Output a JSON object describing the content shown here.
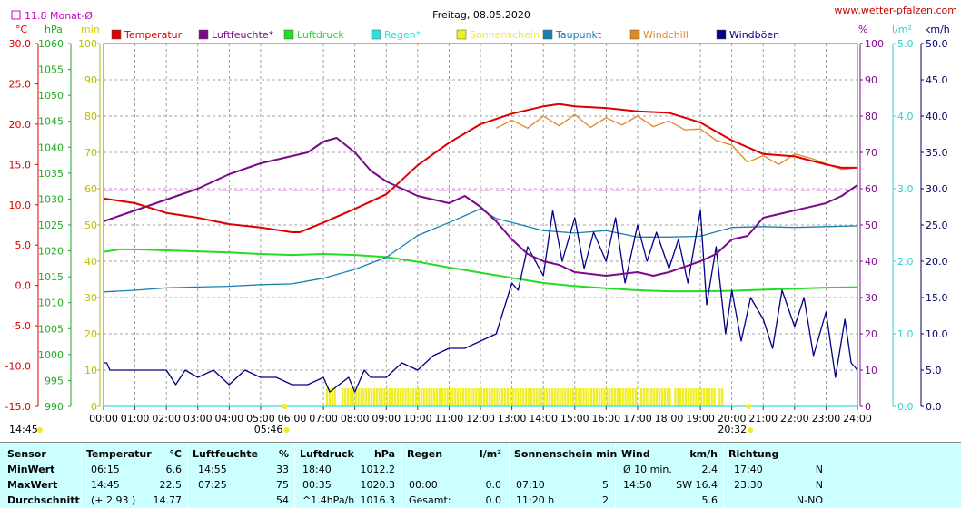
{
  "header": {
    "title": "Freitag, 08.05.2020",
    "website": "www.wetter-pfalzen.com",
    "monthavg_label": "11.8 Monat-Ø",
    "unit_labels": {
      "celsius": "°C",
      "hpa": "hPa",
      "min": "min",
      "percent": "%",
      "lm2": "l/m²",
      "kmh": "km/h"
    }
  },
  "colors": {
    "temperature": "#dd0000",
    "humidity": "#7b0a8a",
    "pressure": "#22dd22",
    "rain": "#33dddd",
    "sunshine": "#eeee22",
    "dewpoint": "#1a7fb0",
    "windchill": "#dd8822",
    "gusts": "#000088",
    "reference": "#cc00cc",
    "stats_bg": "#ccffff"
  },
  "chart_data": {
    "type": "line",
    "x_axis": {
      "ticks": [
        "00:00",
        "01:00",
        "02:00",
        "03:00",
        "04:00",
        "05:00",
        "06:00",
        "07:00",
        "08:00",
        "09:00",
        "10:00",
        "11:00",
        "12:00",
        "13:00",
        "14:00",
        "15:00",
        "16:00",
        "17:00",
        "18:00",
        "19:00",
        "20:00",
        "21:00",
        "22:00",
        "23:00",
        "24:00"
      ],
      "sunrise": "05:46",
      "sunset": "20:32"
    },
    "left_axes": [
      {
        "unit": "°C",
        "range": [
          -15,
          30
        ],
        "ticks": [
          "30.0",
          "25.0",
          "20.0",
          "15.0",
          "10.0",
          "5.0",
          "0.0",
          "-5.0",
          "-10.0",
          "-15.0"
        ]
      },
      {
        "unit": "hPa",
        "range": [
          990,
          1060
        ],
        "ticks": [
          "1060",
          "1055",
          "1050",
          "1045",
          "1040",
          "1035",
          "1030",
          "1025",
          "1020",
          "1015",
          "1010",
          "1005",
          "1000",
          "995",
          "990"
        ]
      },
      {
        "unit": "min",
        "range": [
          0,
          100
        ],
        "ticks": [
          "100",
          "90",
          "80",
          "70",
          "60",
          "50",
          "40",
          "30",
          "20",
          "10",
          "0"
        ]
      }
    ],
    "right_axes": [
      {
        "unit": "%",
        "range": [
          0,
          100
        ],
        "ticks": [
          "100",
          "90",
          "80",
          "70",
          "60",
          "50",
          "40",
          "30",
          "20",
          "10",
          "0"
        ]
      },
      {
        "unit": "l/m²",
        "range": [
          0,
          5
        ],
        "ticks": [
          "5.0",
          "4.0",
          "3.0",
          "2.0",
          "1.0",
          "0.0"
        ]
      },
      {
        "unit": "km/h",
        "range": [
          0,
          50
        ],
        "ticks": [
          "50.0",
          "45.0",
          "40.0",
          "35.0",
          "30.0",
          "25.0",
          "20.0",
          "15.0",
          "10.0",
          "5.0",
          "0.0"
        ]
      }
    ],
    "reference_line": {
      "label": "11.8 Monat-Ø",
      "value_c": 11.8
    },
    "legend": [
      "Temperatur",
      "Luftfeuchte*",
      "Luftdruck",
      "Regen*",
      "Sonnenschein",
      "Taupunkt",
      "Windchill",
      "Windböen"
    ],
    "series": [
      {
        "name": "Temperatur",
        "axis": "°C",
        "x": [
          0,
          1,
          2,
          3,
          4,
          5,
          6,
          6.25,
          7,
          8,
          9,
          10,
          11,
          12,
          13,
          14,
          14.5,
          15,
          16,
          17,
          18,
          19,
          20,
          21,
          22,
          23,
          23.5,
          24
        ],
        "y": [
          10.8,
          10.2,
          9.0,
          8.4,
          7.6,
          7.2,
          6.6,
          6.6,
          7.8,
          9.5,
          11.3,
          14.9,
          17.7,
          20.0,
          21.3,
          22.2,
          22.5,
          22.2,
          22.0,
          21.6,
          21.4,
          20.2,
          18.0,
          16.3,
          16.0,
          15.0,
          14.6,
          14.6
        ]
      },
      {
        "name": "Luftfeuchte*",
        "axis": "%",
        "x": [
          0,
          1,
          2,
          3,
          4,
          5,
          6,
          6.5,
          7,
          7.42,
          8,
          8.5,
          9,
          10,
          11,
          11.5,
          12,
          12.5,
          13,
          13.5,
          14,
          14.5,
          15,
          16,
          17,
          17.5,
          18,
          19,
          19.5,
          20,
          20.5,
          21,
          22,
          23,
          23.5,
          24
        ],
        "y": [
          51,
          54,
          57,
          60,
          64,
          67,
          69,
          70,
          73,
          74,
          70,
          65,
          62,
          58,
          56,
          58,
          55,
          51,
          46,
          42,
          40,
          39,
          37,
          36,
          37,
          36,
          37,
          40,
          42,
          46,
          47,
          52,
          54,
          56,
          58,
          61
        ]
      },
      {
        "name": "Luftdruck",
        "axis": "hPa",
        "x": [
          0,
          0.5,
          1,
          2,
          3,
          4,
          5,
          6,
          7,
          8,
          9,
          10,
          11,
          12,
          13,
          14,
          15,
          16,
          17,
          18,
          19,
          20,
          21,
          22,
          23,
          24
        ],
        "y": [
          1019.8,
          1020.3,
          1020.3,
          1020.1,
          1019.9,
          1019.7,
          1019.4,
          1019.2,
          1019.4,
          1019.2,
          1018.8,
          1017.9,
          1016.8,
          1015.8,
          1014.8,
          1013.8,
          1013.2,
          1012.8,
          1012.4,
          1012.2,
          1012.2,
          1012.3,
          1012.5,
          1012.7,
          1012.9,
          1013.0
        ]
      },
      {
        "name": "Regen*",
        "axis": "l/m²",
        "x": [
          0,
          24
        ],
        "y": [
          0,
          0
        ]
      },
      {
        "name": "Taupunkt",
        "axis": "°C",
        "x": [
          0,
          1,
          2,
          3,
          4,
          5,
          6,
          7,
          8,
          9,
          10,
          11,
          12,
          12.5,
          13,
          14,
          15,
          16,
          17,
          18,
          19,
          20,
          21,
          22,
          23,
          24
        ],
        "y": [
          -0.8,
          -0.6,
          -0.3,
          -0.2,
          -0.1,
          0.1,
          0.2,
          0.9,
          2.0,
          3.5,
          6.2,
          7.8,
          9.5,
          8.3,
          7.8,
          6.8,
          6.5,
          6.8,
          6.0,
          6.0,
          6.1,
          7.2,
          7.3,
          7.2,
          7.3,
          7.4
        ]
      },
      {
        "name": "Windchill",
        "axis": "°C",
        "x": [
          12.5,
          13,
          13.5,
          14,
          14.5,
          15,
          15.5,
          16,
          16.5,
          17,
          17.5,
          18,
          18.5,
          19,
          19.5,
          20,
          20.5,
          21,
          21.5,
          22,
          22.5,
          23,
          23.5,
          24
        ],
        "y": [
          19.5,
          20.5,
          19.5,
          21.0,
          19.8,
          21.2,
          19.6,
          20.8,
          19.9,
          21.0,
          19.7,
          20.4,
          19.3,
          19.4,
          18.0,
          17.4,
          15.3,
          16.1,
          15.0,
          16.3,
          15.8,
          15.1,
          14.4,
          14.6
        ]
      },
      {
        "name": "Windböen",
        "axis": "km/h",
        "x": [
          0,
          0.1,
          0.2,
          1,
          2,
          2.3,
          2.6,
          3,
          3.5,
          4,
          4.5,
          5,
          5.5,
          6,
          6.5,
          7,
          7.2,
          7.5,
          7.8,
          8,
          8.3,
          8.5,
          9,
          9.5,
          10,
          10.5,
          11,
          11.5,
          12,
          12.5,
          13,
          13.2,
          13.5,
          14,
          14.3,
          14.6,
          15,
          15.3,
          15.6,
          16,
          16.3,
          16.6,
          17,
          17.3,
          17.6,
          18,
          18.3,
          18.6,
          19,
          19.2,
          19.5,
          19.8,
          20,
          20.3,
          20.6,
          21,
          21.3,
          21.6,
          22,
          22.3,
          22.6,
          23,
          23.3,
          23.6,
          23.8,
          24
        ],
        "y": [
          6,
          6,
          5,
          5,
          5,
          3,
          5,
          4,
          5,
          3,
          5,
          4,
          4,
          3,
          3,
          4,
          2,
          3,
          4,
          2,
          5,
          4,
          4,
          6,
          5,
          7,
          8,
          8,
          9,
          10,
          17,
          16,
          22,
          18,
          27,
          20,
          26,
          19,
          24,
          20,
          26,
          17,
          25,
          20,
          24,
          19,
          23,
          17,
          27,
          14,
          22,
          10,
          16,
          9,
          15,
          12,
          8,
          16,
          11,
          15,
          7,
          13,
          4,
          12,
          6,
          5
        ]
      }
    ],
    "sunshine_bars": {
      "name": "Sonnenschein",
      "axis": "min",
      "intervals": [
        [
          "07:05",
          "07:20"
        ],
        [
          "07:35",
          "08:05"
        ],
        [
          "08:10",
          "17:00"
        ],
        [
          "17:05",
          "18:00"
        ],
        [
          "18:10",
          "19:25"
        ],
        [
          "19:35",
          "19:40"
        ]
      ],
      "bar_value_min": 5
    }
  },
  "stats": {
    "headers": {
      "sensor": "Sensor",
      "temp": "Temperatur",
      "temp_unit": "°C",
      "hum": "Luftfeuchte",
      "hum_unit": "%",
      "press": "Luftdruck",
      "press_unit": "hPa",
      "rain": "Regen",
      "rain_unit": "l/m²",
      "sun": "Sonnenschein min",
      "wind": "Wind",
      "wind_unit": "km/h",
      "dir": "Richtung"
    },
    "rows": [
      {
        "label": "MinWert",
        "temp_time": "06:15",
        "temp_val": "6.6",
        "hum_time": "14:55",
        "hum_val": "33",
        "press_time": "18:40",
        "press_val": "1012.2",
        "rain_time": "",
        "rain_val": "",
        "sun_time": "",
        "sun_val": "",
        "wind_a": "Ø 10 min.",
        "wind_b": "2.4",
        "dir_time": "17:40",
        "dir_val": "N"
      },
      {
        "label": "MaxWert",
        "temp_time": "14:45",
        "temp_val": "22.5",
        "hum_time": "07:25",
        "hum_val": "75",
        "press_time": "00:35",
        "press_val": "1020.3",
        "rain_time": "00:00",
        "rain_val": "0.0",
        "sun_time": "07:10",
        "sun_val": "5",
        "wind_a": "14:50",
        "wind_b": "SW 16.4",
        "dir_time": "23:30",
        "dir_val": "N"
      },
      {
        "label": "Durchschnitt",
        "temp_time": "(+ 2.93 )",
        "temp_val": "14.77",
        "hum_time": "",
        "hum_val": "54",
        "press_time": "^1.4hPa/h",
        "press_val": "1016.3",
        "rain_time": "Gesamt:",
        "rain_val": "0.0",
        "sun_time": "11:20 h",
        "sun_val": "2",
        "wind_a": "",
        "wind_b": "5.6",
        "dir_time": "",
        "dir_val": "N-NO"
      }
    ]
  }
}
